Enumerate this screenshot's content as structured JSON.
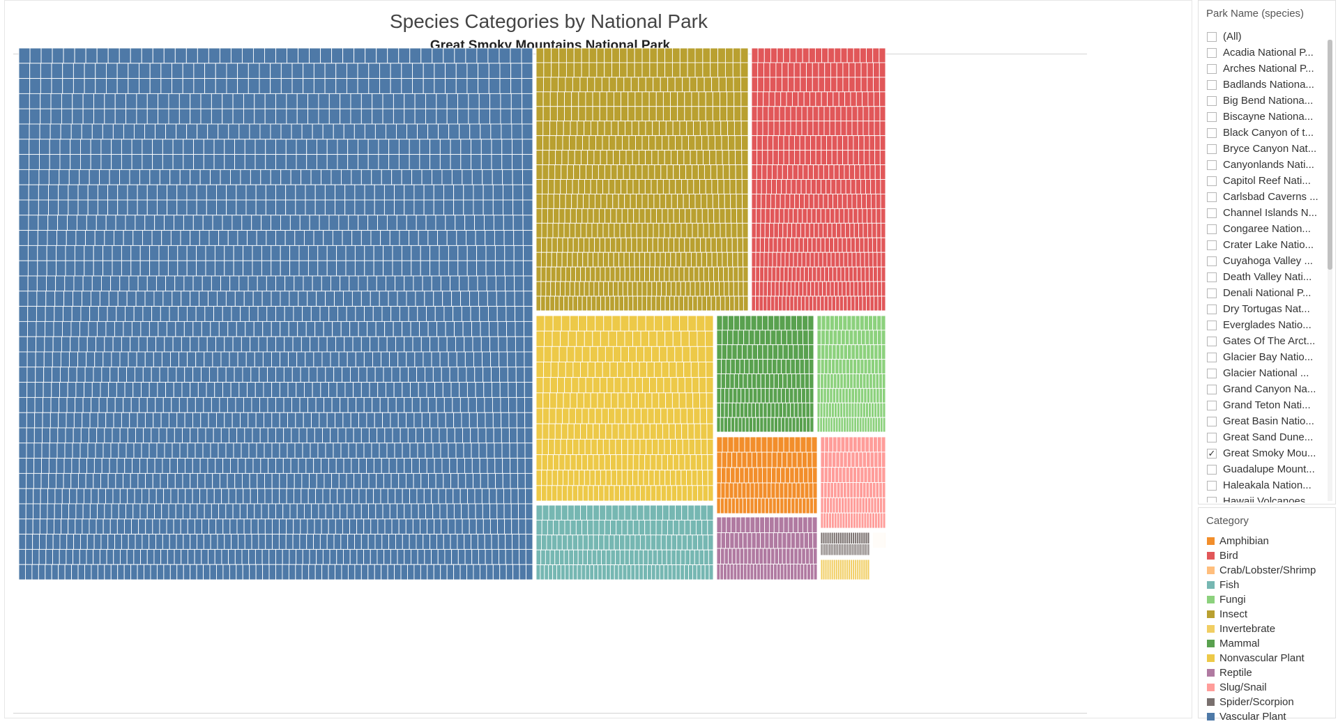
{
  "chart_data": {
    "type": "treemap",
    "title": "Species Categories by National Park",
    "subtitle": "Great Smoky Mountains National Park",
    "categories": [
      {
        "name": "Vascular Plant",
        "color": "#4e79a7"
      },
      {
        "name": "Insect",
        "color": "#b9a030"
      },
      {
        "name": "Bird",
        "color": "#e15759"
      },
      {
        "name": "Nonvascular Plant",
        "color": "#edc948"
      },
      {
        "name": "Mammal",
        "color": "#59a14f"
      },
      {
        "name": "Fungi",
        "color": "#8cd17d"
      },
      {
        "name": "Fish",
        "color": "#76b7b2"
      },
      {
        "name": "Amphibian",
        "color": "#f28e2b"
      },
      {
        "name": "Slug/Snail",
        "color": "#ff9d9a"
      },
      {
        "name": "Reptile",
        "color": "#b07aa1"
      },
      {
        "name": "Spider/Scorpion",
        "color": "#79706e"
      },
      {
        "name": "Invertebrate",
        "color": "#f1ce63"
      },
      {
        "name": "Crab/Lobster/Shrimp",
        "color": "#ffbe7d"
      }
    ]
  },
  "filter": {
    "title": "Park Name (species)",
    "items": [
      {
        "label": "(All)",
        "checked": false
      },
      {
        "label": "Acadia National P...",
        "checked": false
      },
      {
        "label": "Arches National P...",
        "checked": false
      },
      {
        "label": "Badlands Nationa...",
        "checked": false
      },
      {
        "label": "Big Bend Nationa...",
        "checked": false
      },
      {
        "label": "Biscayne Nationa...",
        "checked": false
      },
      {
        "label": "Black Canyon of t...",
        "checked": false
      },
      {
        "label": "Bryce Canyon Nat...",
        "checked": false
      },
      {
        "label": "Canyonlands Nati...",
        "checked": false
      },
      {
        "label": "Capitol Reef Nati...",
        "checked": false
      },
      {
        "label": "Carlsbad Caverns ...",
        "checked": false
      },
      {
        "label": "Channel Islands N...",
        "checked": false
      },
      {
        "label": "Congaree Nation...",
        "checked": false
      },
      {
        "label": "Crater Lake Natio...",
        "checked": false
      },
      {
        "label": "Cuyahoga Valley ...",
        "checked": false
      },
      {
        "label": "Death Valley Nati...",
        "checked": false
      },
      {
        "label": "Denali National P...",
        "checked": false
      },
      {
        "label": "Dry Tortugas Nat...",
        "checked": false
      },
      {
        "label": "Everglades Natio...",
        "checked": false
      },
      {
        "label": "Gates Of The Arct...",
        "checked": false
      },
      {
        "label": "Glacier Bay Natio...",
        "checked": false
      },
      {
        "label": "Glacier National ...",
        "checked": false
      },
      {
        "label": "Grand Canyon Na...",
        "checked": false
      },
      {
        "label": "Grand Teton Nati...",
        "checked": false
      },
      {
        "label": "Great Basin Natio...",
        "checked": false
      },
      {
        "label": "Great Sand Dune...",
        "checked": false
      },
      {
        "label": "Great Smoky Mou...",
        "checked": true
      },
      {
        "label": "Guadalupe Mount...",
        "checked": false
      },
      {
        "label": "Haleakala Nation...",
        "checked": false
      },
      {
        "label": "Hawaii Volcanoes ...",
        "checked": false
      }
    ]
  },
  "legend": {
    "title": "Category",
    "items": [
      {
        "label": "Amphibian",
        "color": "#f28e2b"
      },
      {
        "label": "Bird",
        "color": "#e15759"
      },
      {
        "label": "Crab/Lobster/Shrimp",
        "color": "#ffbe7d"
      },
      {
        "label": "Fish",
        "color": "#76b7b2"
      },
      {
        "label": "Fungi",
        "color": "#8cd17d"
      },
      {
        "label": "Insect",
        "color": "#b9a030"
      },
      {
        "label": "Invertebrate",
        "color": "#f1ce63"
      },
      {
        "label": "Mammal",
        "color": "#59a14f"
      },
      {
        "label": "Nonvascular Plant",
        "color": "#edc948"
      },
      {
        "label": "Reptile",
        "color": "#b07aa1"
      },
      {
        "label": "Slug/Snail",
        "color": "#ff9d9a"
      },
      {
        "label": "Spider/Scorpion",
        "color": "#79706e"
      },
      {
        "label": "Vascular Plant",
        "color": "#4e79a7"
      }
    ]
  }
}
